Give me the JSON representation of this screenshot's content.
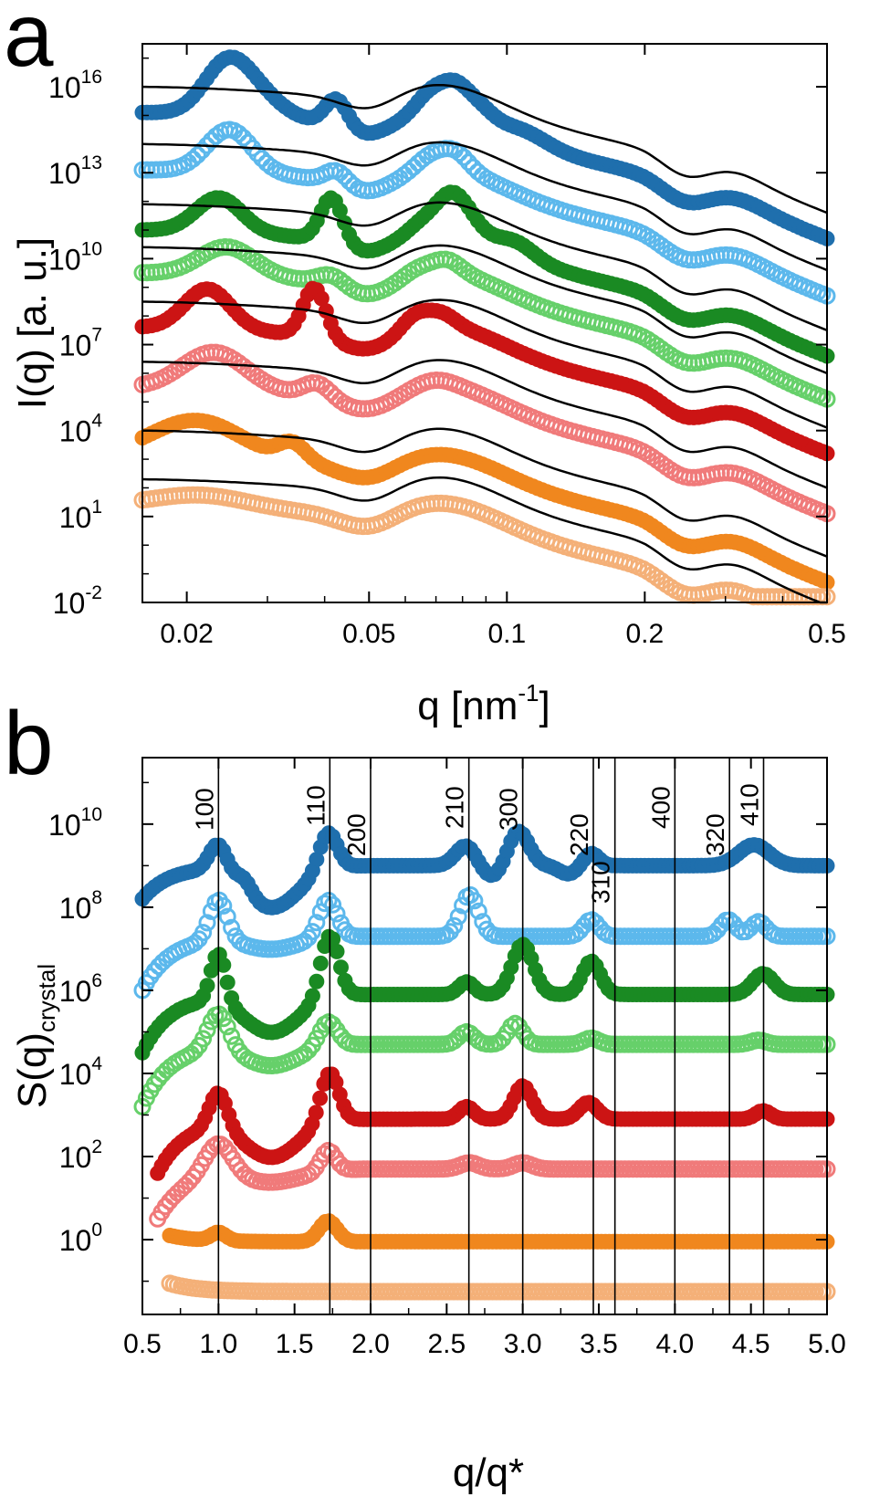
{
  "figure": {
    "panel_a_label": "a",
    "panel_b_label": "b"
  },
  "chart_data": [
    {
      "panel": "a",
      "type": "scatter",
      "xlabel_main": "q [nm",
      "xlabel_sup": "-1",
      "xlabel_end": "]",
      "ylabel": "I(q) [a. u.]",
      "xscale": "log",
      "yscale": "log",
      "xlim": [
        0.016,
        0.5
      ],
      "ylim_exponent": [
        -2,
        17.5
      ],
      "x_ticks": [
        {
          "value": 0.02,
          "label": "0.02"
        },
        {
          "value": 0.05,
          "label": "0.05"
        },
        {
          "value": 0.1,
          "label": "0.1"
        },
        {
          "value": 0.2,
          "label": "0.2"
        },
        {
          "value": 0.5,
          "label": "0.5"
        }
      ],
      "y_ticks": [
        {
          "exponent": 16,
          "base": "10",
          "sup": "16"
        },
        {
          "exponent": 13,
          "base": "10",
          "sup": "13"
        },
        {
          "exponent": 10,
          "base": "10",
          "sup": "10"
        },
        {
          "exponent": 7,
          "base": "10",
          "sup": "7"
        },
        {
          "exponent": 4,
          "base": "10",
          "sup": "4"
        },
        {
          "exponent": 1,
          "base": "10",
          "sup": "1"
        },
        {
          "exponent": -2,
          "base": "10",
          "sup": "-2"
        }
      ],
      "fit_color": "#000000",
      "series": [
        {
          "color": "#1f6fad",
          "open": false,
          "offset": 14.5,
          "fit_start": 16.0,
          "peaks": [
            [
              0.0245,
              1.8,
              0.05
            ],
            [
              0.029,
              0.6,
              0.05
            ],
            [
              0.0425,
              1.0,
              0.025
            ],
            [
              0.068,
              0.6,
              0.03
            ],
            [
              0.077,
              0.9,
              0.03
            ],
            [
              0.087,
              0.4,
              0.03
            ],
            [
              0.11,
              0.3,
              0.05
            ]
          ]
        },
        {
          "color": "#5cb8ec",
          "open": true,
          "offset": 12.5,
          "fit_start": 14.0,
          "peaks": [
            [
              0.0248,
              1.5,
              0.05
            ],
            [
              0.0425,
              0.5,
              0.025
            ],
            [
              0.068,
              0.4,
              0.03
            ],
            [
              0.077,
              0.6,
              0.03
            ]
          ]
        },
        {
          "color": "#1a8a23",
          "open": false,
          "offset": 11.3,
          "fit_start": 11.9,
          "peaks": [
            [
              0.0235,
              1.2,
              0.05
            ],
            [
              0.0415,
              1.6,
              0.025
            ],
            [
              0.066,
              0.3,
              0.03
            ],
            [
              0.075,
              1.0,
              0.03
            ],
            [
              0.082,
              0.5,
              0.03
            ],
            [
              0.105,
              0.4,
              0.04
            ]
          ]
        },
        {
          "color": "#66d06a",
          "open": true,
          "offset": 9.0,
          "fit_start": 10.4,
          "peaks": [
            [
              0.0245,
              1.0,
              0.06
            ],
            [
              0.0415,
              0.4,
              0.03
            ],
            [
              0.064,
              0.2,
              0.03
            ],
            [
              0.074,
              0.4,
              0.03
            ]
          ]
        },
        {
          "color": "#cc1414",
          "open": false,
          "offset": 7.0,
          "fit_start": 8.5,
          "peaks": [
            [
              0.0222,
              1.4,
              0.05
            ],
            [
              0.038,
              1.7,
              0.025
            ],
            [
              0.063,
              0.5,
              0.03
            ],
            [
              0.072,
              0.4,
              0.03
            ]
          ]
        },
        {
          "color": "#f07a7a",
          "open": true,
          "offset": 5.0,
          "fit_start": 6.4,
          "peaks": [
            [
              0.023,
              1.3,
              0.07
            ],
            [
              0.0385,
              0.5,
              0.03
            ],
            [
              0.07,
              0.2,
              0.04
            ]
          ]
        },
        {
          "color": "#f0871e",
          "open": false,
          "offset": 3.5,
          "fit_start": 4.0,
          "peaks": [
            [
              0.021,
              1.3,
              0.1
            ],
            [
              0.034,
              0.6,
              0.03
            ]
          ]
        },
        {
          "color": "#f4b078",
          "open": true,
          "offset": 2.3,
          "fit_start": 2.3,
          "peaks": [
            [
              0.0215,
              0.4,
              0.1
            ]
          ]
        }
      ]
    },
    {
      "panel": "b",
      "type": "scatter",
      "xlabel": "q/q*",
      "ylabel_main": "S(q)",
      "ylabel_sub": "crystal",
      "yscale": "log",
      "xlim": [
        0.5,
        5.0
      ],
      "ylim_exponent": [
        -1.8,
        11.6
      ],
      "x_ticks": [
        "0.5",
        "1.0",
        "1.5",
        "2.0",
        "2.5",
        "3.0",
        "3.5",
        "4.0",
        "4.5",
        "5.0"
      ],
      "x_tick_values": [
        0.5,
        1.0,
        1.5,
        2.0,
        2.5,
        3.0,
        3.5,
        4.0,
        4.5,
        5.0
      ],
      "y_ticks": [
        {
          "exponent": 10,
          "base": "10",
          "sup": "10"
        },
        {
          "exponent": 8,
          "base": "10",
          "sup": "8"
        },
        {
          "exponent": 6,
          "base": "10",
          "sup": "6"
        },
        {
          "exponent": 4,
          "base": "10",
          "sup": "4"
        },
        {
          "exponent": 2,
          "base": "10",
          "sup": "2"
        },
        {
          "exponent": 0,
          "base": "10",
          "sup": "0"
        }
      ],
      "reflections": [
        {
          "label": "100",
          "x": 1.0
        },
        {
          "label": "110",
          "x": 1.732
        },
        {
          "label": "200",
          "x": 2.0
        },
        {
          "label": "210",
          "x": 2.646
        },
        {
          "label": "300",
          "x": 3.0
        },
        {
          "label": "220",
          "x": 3.464
        },
        {
          "label": "310",
          "x": 3.606
        },
        {
          "label": "400",
          "x": 4.0
        },
        {
          "label": "320",
          "x": 4.359
        },
        {
          "label": "410",
          "x": 4.583
        }
      ],
      "series": [
        {
          "color": "#1f6fad",
          "open": false,
          "x_start": 0.5,
          "base": 9.0,
          "start_level": 8.2,
          "peaks": [
            [
              1.0,
              0.7,
              0.06
            ],
            [
              1.17,
              0.3,
              0.05
            ],
            [
              1.72,
              0.9,
              0.06
            ],
            [
              2.63,
              0.5,
              0.07
            ],
            [
              2.97,
              0.85,
              0.07
            ],
            [
              3.45,
              0.3,
              0.05
            ],
            [
              4.52,
              0.5,
              0.1
            ]
          ],
          "dips": [
            [
              1.35,
              1.0,
              0.18
            ],
            [
              2.8,
              0.3,
              0.08
            ],
            [
              3.3,
              0.2,
              0.06
            ]
          ]
        },
        {
          "color": "#5cb8ec",
          "open": true,
          "x_start": 0.5,
          "base": 7.3,
          "start_level": 6.0,
          "peaks": [
            [
              1.0,
              1.0,
              0.06
            ],
            [
              1.72,
              0.9,
              0.06
            ],
            [
              2.65,
              1.0,
              0.06
            ],
            [
              3.45,
              0.4,
              0.05
            ],
            [
              4.35,
              0.4,
              0.05
            ],
            [
              4.55,
              0.35,
              0.05
            ]
          ],
          "dips": [
            [
              1.35,
              0.3,
              0.18
            ]
          ]
        },
        {
          "color": "#1a8a23",
          "open": false,
          "x_start": 0.5,
          "base": 5.9,
          "start_level": 4.5,
          "peaks": [
            [
              1.0,
              1.2,
              0.05
            ],
            [
              1.73,
              1.5,
              0.06
            ],
            [
              2.63,
              0.3,
              0.05
            ],
            [
              3.0,
              1.2,
              0.07
            ],
            [
              3.45,
              0.8,
              0.06
            ],
            [
              4.58,
              0.5,
              0.07
            ]
          ],
          "dips": [
            [
              1.35,
              0.9,
              0.18
            ]
          ]
        },
        {
          "color": "#66d06a",
          "open": true,
          "x_start": 0.5,
          "base": 4.7,
          "start_level": 3.2,
          "peaks": [
            [
              1.0,
              0.9,
              0.07
            ],
            [
              1.72,
              0.6,
              0.06
            ],
            [
              2.63,
              0.3,
              0.05
            ],
            [
              2.95,
              0.5,
              0.05
            ],
            [
              3.45,
              0.15,
              0.05
            ],
            [
              4.55,
              0.1,
              0.05
            ]
          ],
          "dips": [
            [
              1.35,
              0.5,
              0.18
            ]
          ]
        },
        {
          "color": "#cc1414",
          "open": false,
          "x_start": 0.6,
          "base": 2.9,
          "start_level": 1.6,
          "peaks": [
            [
              1.0,
              0.9,
              0.06
            ],
            [
              1.73,
              1.2,
              0.06
            ],
            [
              2.63,
              0.3,
              0.05
            ],
            [
              3.0,
              0.8,
              0.06
            ],
            [
              3.43,
              0.4,
              0.06
            ],
            [
              4.58,
              0.2,
              0.05
            ]
          ],
          "dips": [
            [
              1.35,
              0.9,
              0.18
            ]
          ]
        },
        {
          "color": "#f07a7a",
          "open": true,
          "x_start": 0.6,
          "base": 1.7,
          "start_level": 0.5,
          "peaks": [
            [
              1.0,
              0.8,
              0.09
            ],
            [
              1.72,
              0.5,
              0.05
            ],
            [
              2.65,
              0.15,
              0.06
            ],
            [
              3.0,
              0.15,
              0.06
            ]
          ],
          "dips": [
            [
              1.35,
              0.3,
              0.2
            ]
          ]
        },
        {
          "color": "#f0871e",
          "open": false,
          "x_start": 0.68,
          "base": -0.05,
          "start_level": 0.1,
          "peaks": [
            [
              1.0,
              0.2,
              0.05
            ],
            [
              1.72,
              0.5,
              0.06
            ]
          ],
          "dips": []
        },
        {
          "color": "#f4b078",
          "open": true,
          "x_start": 0.68,
          "base": -1.25,
          "start_level": -1.05,
          "peaks": [],
          "dips": []
        }
      ]
    }
  ]
}
